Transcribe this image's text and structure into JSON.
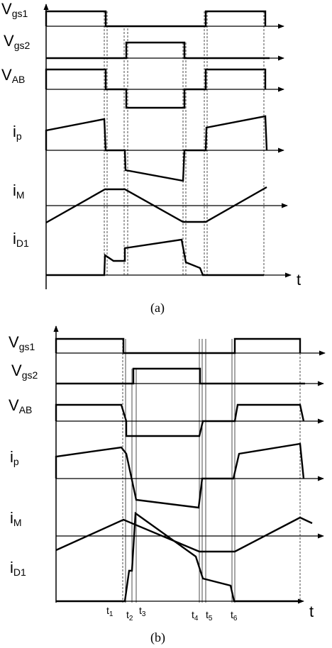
{
  "panel_a": {
    "signals": [
      {
        "name": "V",
        "sub": "gs1"
      },
      {
        "name": "V",
        "sub": "gs2"
      },
      {
        "name": "V",
        "sub": "AB"
      },
      {
        "name": "i",
        "sub": "p"
      },
      {
        "name": "i",
        "sub": "M"
      },
      {
        "name": "i",
        "sub": "D1"
      }
    ],
    "axis_label": "t",
    "caption": "(a)"
  },
  "panel_b": {
    "signals": [
      {
        "name": "V",
        "sub": "gs1"
      },
      {
        "name": "V",
        "sub": "gs2"
      },
      {
        "name": "V",
        "sub": "AB"
      },
      {
        "name": "i",
        "sub": "p"
      },
      {
        "name": "i",
        "sub": "M"
      },
      {
        "name": "i",
        "sub": "D1"
      }
    ],
    "axis_label": "t",
    "time_markers": [
      {
        "name": "t",
        "sub": "1"
      },
      {
        "name": "t",
        "sub": "2"
      },
      {
        "name": "t",
        "sub": "3"
      },
      {
        "name": "t",
        "sub": "4"
      },
      {
        "name": "t",
        "sub": "5"
      },
      {
        "name": "t",
        "sub": "6"
      }
    ],
    "caption": "(b)"
  }
}
